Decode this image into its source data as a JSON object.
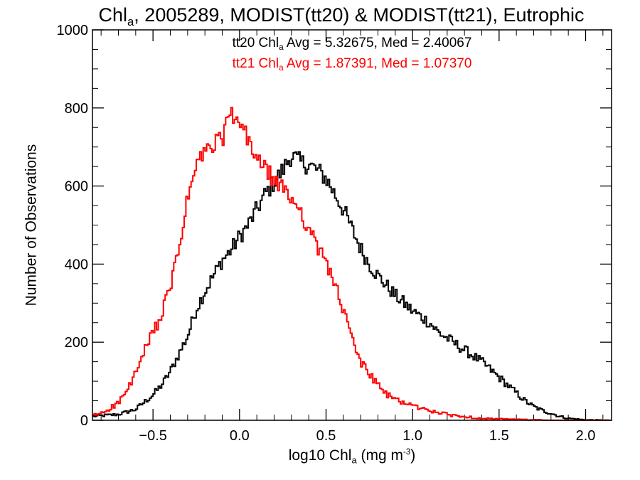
{
  "chart_data": {
    "type": "histogram-step",
    "title": {
      "pre": "Chl",
      "sub": "a",
      "post": ", 2005289, MODIST(tt20) & MODIST(tt21), Eutrophic"
    },
    "xlabel": {
      "pre": "log10 Chl",
      "sub": "a",
      "mid": " (mg m",
      "sup": "-3",
      "post": ")"
    },
    "ylabel": "Number of Observations",
    "xlim": [
      -0.85,
      2.15
    ],
    "ylim": [
      0,
      1000
    ],
    "xticks": [
      -0.5,
      0.0,
      0.5,
      1.0,
      1.5,
      2.0
    ],
    "xtick_labels": [
      "−0.5",
      "0.0",
      "0.5",
      "1.0",
      "1.5",
      "2.0"
    ],
    "yticks": [
      0,
      200,
      400,
      600,
      800,
      1000
    ],
    "ytick_labels": [
      "0",
      "200",
      "400",
      "600",
      "800",
      "1000"
    ],
    "stats": [
      {
        "pre": "tt20 Chl",
        "sub": "a",
        "post": " Avg = 5.32675, Med = 2.40067",
        "color": "#000000"
      },
      {
        "pre": "tt21 Chl",
        "sub": "a",
        "post": " Avg = 1.87391, Med = 1.07370",
        "color": "#ff0000"
      }
    ],
    "series": [
      {
        "color": "#000000",
        "points": [
          [
            -0.85,
            10
          ],
          [
            -0.7,
            15
          ],
          [
            -0.6,
            28
          ],
          [
            -0.5,
            65
          ],
          [
            -0.45,
            90
          ],
          [
            -0.4,
            125
          ],
          [
            -0.35,
            170
          ],
          [
            -0.3,
            215
          ],
          [
            -0.25,
            285
          ],
          [
            -0.2,
            330
          ],
          [
            -0.15,
            370
          ],
          [
            -0.1,
            410
          ],
          [
            -0.05,
            435
          ],
          [
            0.0,
            470
          ],
          [
            0.05,
            500
          ],
          [
            0.1,
            540
          ],
          [
            0.15,
            580
          ],
          [
            0.2,
            610
          ],
          [
            0.25,
            640
          ],
          [
            0.3,
            680
          ],
          [
            0.35,
            660
          ],
          [
            0.4,
            655
          ],
          [
            0.45,
            640
          ],
          [
            0.5,
            620
          ],
          [
            0.55,
            580
          ],
          [
            0.6,
            540
          ],
          [
            0.65,
            490
          ],
          [
            0.7,
            440
          ],
          [
            0.75,
            400
          ],
          [
            0.8,
            370
          ],
          [
            0.85,
            345
          ],
          [
            0.9,
            320
          ],
          [
            0.95,
            300
          ],
          [
            1.0,
            280
          ],
          [
            1.05,
            265
          ],
          [
            1.1,
            250
          ],
          [
            1.15,
            225
          ],
          [
            1.2,
            210
          ],
          [
            1.25,
            195
          ],
          [
            1.3,
            180
          ],
          [
            1.35,
            165
          ],
          [
            1.4,
            150
          ],
          [
            1.45,
            130
          ],
          [
            1.5,
            110
          ],
          [
            1.55,
            90
          ],
          [
            1.6,
            70
          ],
          [
            1.65,
            50
          ],
          [
            1.7,
            35
          ],
          [
            1.75,
            25
          ],
          [
            1.8,
            18
          ],
          [
            1.85,
            10
          ],
          [
            1.9,
            5
          ],
          [
            1.95,
            3
          ],
          [
            2.0,
            1
          ],
          [
            2.15,
            0
          ]
        ]
      },
      {
        "color": "#ff0000",
        "points": [
          [
            -0.85,
            12
          ],
          [
            -0.8,
            18
          ],
          [
            -0.75,
            30
          ],
          [
            -0.7,
            45
          ],
          [
            -0.65,
            75
          ],
          [
            -0.6,
            120
          ],
          [
            -0.55,
            175
          ],
          [
            -0.5,
            225
          ],
          [
            -0.45,
            270
          ],
          [
            -0.4,
            340
          ],
          [
            -0.35,
            440
          ],
          [
            -0.3,
            565
          ],
          [
            -0.25,
            650
          ],
          [
            -0.2,
            690
          ],
          [
            -0.15,
            700
          ],
          [
            -0.1,
            725
          ],
          [
            -0.05,
            780
          ],
          [
            0.0,
            760
          ],
          [
            0.05,
            715
          ],
          [
            0.1,
            675
          ],
          [
            0.15,
            640
          ],
          [
            0.2,
            615
          ],
          [
            0.25,
            590
          ],
          [
            0.3,
            570
          ],
          [
            0.35,
            540
          ],
          [
            0.4,
            490
          ],
          [
            0.45,
            440
          ],
          [
            0.5,
            410
          ],
          [
            0.55,
            350
          ],
          [
            0.6,
            280
          ],
          [
            0.65,
            210
          ],
          [
            0.7,
            150
          ],
          [
            0.75,
            120
          ],
          [
            0.8,
            90
          ],
          [
            0.85,
            65
          ],
          [
            0.9,
            55
          ],
          [
            0.95,
            45
          ],
          [
            1.0,
            38
          ],
          [
            1.05,
            30
          ],
          [
            1.1,
            25
          ],
          [
            1.15,
            20
          ],
          [
            1.2,
            15
          ],
          [
            1.25,
            12
          ],
          [
            1.3,
            9
          ],
          [
            1.35,
            7
          ],
          [
            1.4,
            5
          ],
          [
            1.5,
            3
          ],
          [
            1.6,
            2
          ],
          [
            1.7,
            1
          ],
          [
            1.8,
            0
          ],
          [
            2.15,
            0
          ]
        ]
      }
    ]
  }
}
